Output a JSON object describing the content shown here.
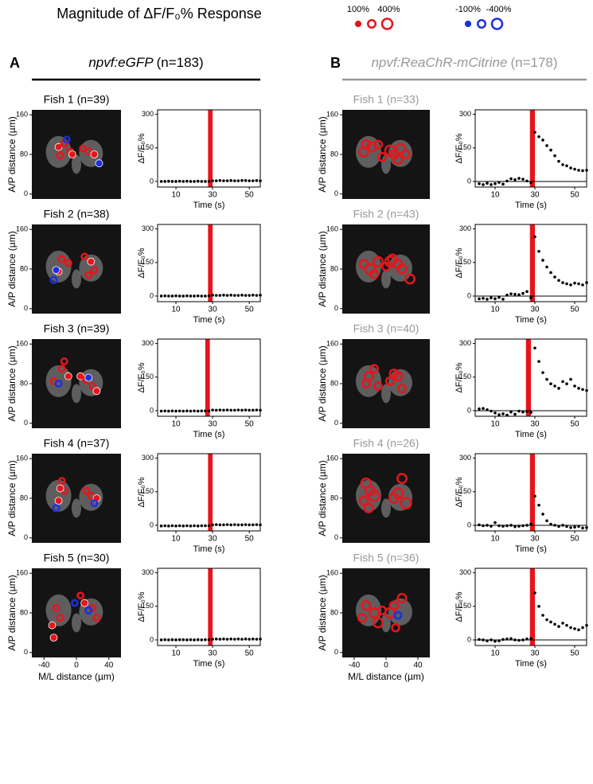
{
  "title": "Magnitude of ΔF/F₀% Response",
  "legend": {
    "positive": {
      "values": [
        100,
        200,
        400
      ],
      "labels": [
        "100%",
        null,
        "400%"
      ]
    },
    "negative": {
      "values": [
        -100,
        -200,
        -400
      ],
      "labels": [
        "-100%",
        null,
        "-400%"
      ]
    }
  },
  "positive_color": "#e8141b",
  "negative_color": "#1d2fe0",
  "image_axes": {
    "x_label": "M/L distance (µm)",
    "y_label": "A/P distance (µm)",
    "xlim": [
      -55,
      55
    ],
    "xticks": [
      -40,
      0,
      40
    ],
    "ylim": [
      -10,
      170
    ],
    "yticks": [
      0,
      80,
      160
    ]
  },
  "trace_axes": {
    "x_label": "Time (s)",
    "y_label": "ΔF/F₀%",
    "x": [
      2,
      4,
      6,
      8,
      10,
      12,
      14,
      16,
      18,
      20,
      22,
      24,
      26,
      28,
      30,
      32,
      34,
      36,
      38,
      40,
      42,
      44,
      46,
      48,
      50,
      52,
      54,
      56
    ],
    "xlim": [
      0,
      56
    ],
    "xticks": [
      10,
      30,
      50
    ],
    "ylim": [
      -25,
      320
    ],
    "yticks": [
      0,
      150,
      300
    ],
    "stimulus_color": "#e8141b",
    "point_color": "#000000"
  },
  "panels": [
    {
      "letter": "A",
      "genotype": "npvf:eGFP",
      "n": "(n=183)",
      "title_color": "#000000",
      "fish": [
        {
          "label": "Fish 1 (n=39)",
          "cells": {
            "x": [
              -22,
              -15,
              -8,
              -20,
              -5,
              8,
              15,
              22,
              -12,
              28
            ],
            "y": [
              95,
              102,
              86,
              78,
              80,
              92,
              86,
              80,
              110,
              62
            ],
            "response": [
              100,
              120,
              110,
              130,
              100,
              110,
              120,
              100,
              -110,
              -100
            ]
          },
          "stimulus": [
            27.5,
            30
          ],
          "trace": [
            0,
            0,
            1,
            0,
            0,
            1,
            0,
            1,
            0,
            0,
            1,
            0,
            0,
            0,
            3,
            3,
            4,
            3,
            3,
            4,
            3,
            3,
            4,
            4,
            3,
            3,
            4,
            3
          ]
        },
        {
          "label": "Fish 2 (n=38)",
          "cells": {
            "x": [
              -18,
              -10,
              -22,
              10,
              18,
              22,
              15,
              -28,
              -25
            ],
            "y": [
              100,
              92,
              75,
              105,
              95,
              78,
              68,
              58,
              78
            ],
            "response": [
              110,
              120,
              100,
              110,
              100,
              120,
              110,
              -130,
              -100
            ]
          },
          "stimulus": [
            27.5,
            30
          ],
          "trace": [
            0,
            1,
            0,
            0,
            1,
            0,
            0,
            1,
            0,
            0,
            1,
            0,
            0,
            1,
            4,
            3,
            3,
            4,
            3,
            4,
            3,
            3,
            4,
            3,
            3,
            4,
            3,
            4
          ]
        },
        {
          "label": "Fish 3 (n=39)",
          "cells": {
            "x": [
              -15,
              -18,
              -10,
              -28,
              5,
              12,
              20,
              25,
              -22,
              15
            ],
            "y": [
              125,
              110,
              95,
              85,
              95,
              88,
              75,
              65,
              80,
              92
            ],
            "response": [
              120,
              110,
              100,
              110,
              100,
              120,
              110,
              100,
              -120,
              -100
            ]
          },
          "stimulus": [
            26,
            28.5
          ],
          "trace": [
            -2,
            -1,
            -2,
            -1,
            -2,
            -1,
            -2,
            -1,
            -2,
            -1,
            -2,
            -1,
            -1,
            -1,
            3,
            2,
            3,
            2,
            3,
            2,
            2,
            3,
            2,
            3,
            2,
            2,
            3,
            2
          ]
        },
        {
          "label": "Fish 4 (n=37)",
          "cells": {
            "x": [
              -18,
              -15,
              -22,
              12,
              18,
              25,
              -25,
              22,
              -20
            ],
            "y": [
              115,
              95,
              75,
              95,
              85,
              80,
              60,
              70,
              100
            ],
            "response": [
              110,
              120,
              100,
              110,
              120,
              100,
              -130,
              -110,
              100
            ]
          },
          "stimulus": [
            27.5,
            30
          ],
          "trace": [
            -3,
            -2,
            -3,
            -2,
            -3,
            -2,
            -3,
            -2,
            -3,
            -2,
            -3,
            -2,
            -2,
            -2,
            2,
            3,
            2,
            2,
            3,
            2,
            3,
            2,
            2,
            3,
            2,
            2,
            3,
            2
          ]
        },
        {
          "label": "Fish 5 (n=30)",
          "cells": {
            "x": [
              -25,
              -20,
              -30,
              5,
              10,
              20,
              25,
              -2,
              15,
              -28
            ],
            "y": [
              90,
              70,
              55,
              115,
              100,
              90,
              70,
              100,
              85,
              30
            ],
            "response": [
              110,
              120,
              100,
              110,
              100,
              110,
              120,
              -110,
              -120,
              100
            ]
          },
          "stimulus": [
            27.5,
            30
          ],
          "trace": [
            0,
            1,
            0,
            1,
            0,
            1,
            1,
            0,
            1,
            0,
            1,
            0,
            1,
            1,
            3,
            4,
            3,
            4,
            3,
            4,
            3,
            4,
            3,
            4,
            3,
            4,
            3,
            4
          ]
        }
      ]
    },
    {
      "letter": "B",
      "genotype": "npvf:ReaChR-mCitrine",
      "n": "(n=178)",
      "title_color": "#999999",
      "fish": [
        {
          "label": "Fish 1 (n=33)",
          "cells": {
            "x": [
              -25,
              -18,
              -10,
              -28,
              5,
              10,
              18,
              25,
              -5,
              15
            ],
            "y": [
              100,
              95,
              100,
              85,
              88,
              80,
              92,
              80,
              75,
              70
            ],
            "response": [
              250,
              300,
              200,
              280,
              350,
              250,
              300,
              200,
              220,
              280
            ]
          },
          "stimulus": [
            27.5,
            30
          ],
          "trace": [
            -10,
            -14,
            -8,
            -14,
            -10,
            -4,
            -12,
            2,
            12,
            8,
            14,
            10,
            2,
            -5,
            220,
            200,
            185,
            160,
            140,
            115,
            90,
            75,
            70,
            60,
            55,
            50,
            48,
            50
          ]
        },
        {
          "label": "Fish 2 (n=43)",
          "cells": {
            "x": [
              -28,
              -20,
              -10,
              0,
              8,
              15,
              20,
              30,
              -15,
              5
            ],
            "y": [
              90,
              80,
              95,
              85,
              100,
              90,
              80,
              60,
              70,
              95
            ],
            "response": [
              250,
              350,
              300,
              200,
              300,
              250,
              280,
              300,
              220,
              350
            ]
          },
          "stimulus": [
            27.5,
            30
          ],
          "trace": [
            -12,
            -10,
            -14,
            -8,
            -12,
            -6,
            -14,
            4,
            10,
            8,
            6,
            12,
            20,
            -8,
            265,
            200,
            160,
            130,
            105,
            85,
            70,
            60,
            55,
            50,
            58,
            55,
            50,
            60
          ]
        },
        {
          "label": "Fish 3 (n=40)",
          "cells": {
            "x": [
              -15,
              -22,
              -10,
              5,
              15,
              20,
              -25,
              10
            ],
            "y": [
              110,
              95,
              75,
              85,
              95,
              70,
              80,
              100
            ],
            "response": [
              200,
              250,
              180,
              220,
              250,
              200,
              210,
              240
            ]
          },
          "stimulus": [
            25.5,
            28
          ],
          "trace": [
            8,
            10,
            4,
            -2,
            -10,
            -18,
            -14,
            -20,
            -6,
            -16,
            -2,
            -6,
            -4,
            -8,
            280,
            220,
            170,
            140,
            120,
            110,
            100,
            130,
            120,
            140,
            110,
            100,
            95,
            90
          ]
        },
        {
          "label": "Fish 4 (n=26)",
          "cells": {
            "x": [
              -25,
              -20,
              -15,
              -28,
              10,
              15,
              25,
              20,
              -22
            ],
            "y": [
              110,
              95,
              85,
              75,
              80,
              90,
              70,
              120,
              60
            ],
            "response": [
              350,
              300,
              400,
              250,
              300,
              350,
              400,
              300,
              250
            ]
          },
          "stimulus": [
            27.5,
            30
          ],
          "trace": [
            2,
            -2,
            0,
            -4,
            12,
            -2,
            -4,
            -2,
            0,
            -6,
            -4,
            -2,
            0,
            6,
            130,
            90,
            50,
            20,
            5,
            0,
            -5,
            0,
            -5,
            -10,
            -8,
            -5,
            -12,
            -10
          ]
        },
        {
          "label": "Fish 5 (n=36)",
          "cells": {
            "x": [
              -25,
              -15,
              -5,
              5,
              10,
              15,
              20,
              -30,
              -10,
              12
            ],
            "y": [
              95,
              80,
              85,
              80,
              95,
              75,
              110,
              70,
              60,
              50
            ],
            "response": [
              250,
              300,
              200,
              350,
              220,
              -150,
              250,
              200,
              300,
              180
            ]
          },
          "stimulus": [
            27.5,
            30
          ],
          "trace": [
            2,
            0,
            -4,
            0,
            -6,
            -4,
            2,
            4,
            6,
            0,
            -2,
            0,
            4,
            6,
            210,
            150,
            110,
            90,
            80,
            70,
            60,
            75,
            65,
            55,
            50,
            45,
            55,
            65
          ]
        }
      ]
    }
  ]
}
